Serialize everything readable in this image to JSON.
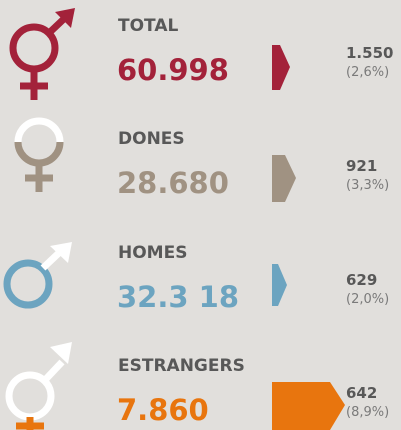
{
  "rows": [
    {
      "label": "TOTAL",
      "value": "60.998",
      "change": "1.550",
      "pct": "(2,6%)",
      "color": "#a3223a"
    },
    {
      "label": "DONES",
      "value": "28.680",
      "change": "921",
      "pct": "(3,3%)",
      "color": "#a09282"
    },
    {
      "label": "HOMES",
      "value": "32.3 18",
      "change": "629",
      "pct": "(2,0%)",
      "color": "#6ca4c0"
    },
    {
      "label": "ESTRANGERS",
      "value": "7.860",
      "change": "642",
      "pct": "(8,9%)",
      "color": "#e8750e"
    }
  ]
}
